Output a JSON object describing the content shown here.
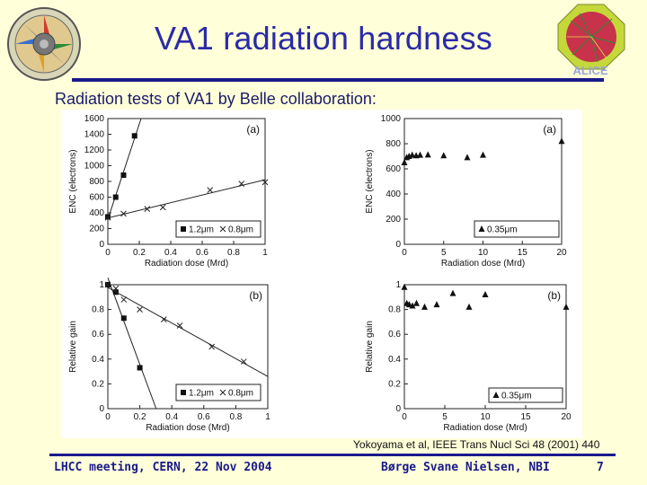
{
  "header": {
    "title": "VA1 radiation hardness",
    "subtitle": "Radiation tests of VA1 by Belle collaboration:"
  },
  "citation": "Yokoyama et al, IEEE Trans Nucl Sci 48 (2001) 440",
  "footer": {
    "left": "LHCC meeting, CERN, 22 Nov 2004",
    "center": "Børge Svane Nielsen, NBI",
    "page": "7"
  },
  "logos": {
    "right_logo_text": "ALICE"
  },
  "colors": {
    "title": "#2a2aa8",
    "rule": "#1a1a8c",
    "background": "#ffffd9"
  },
  "chart_data": [
    {
      "type": "scatter",
      "panel": "(a)",
      "xlabel": "Radiation dose (Mrd)",
      "ylabel": "ENC (electrons)",
      "xlim": [
        0,
        1
      ],
      "ylim": [
        0,
        1600
      ],
      "xticks": [
        "0",
        "0.2",
        "0.4",
        "0.6",
        "0.8",
        "1"
      ],
      "yticks": [
        "0",
        "200",
        "400",
        "600",
        "800",
        "1000",
        "1200",
        "1400",
        "1600"
      ],
      "legend": [
        "1.2μm",
        "0.8μm"
      ],
      "series": [
        {
          "name": "1.2μm",
          "marker": "square",
          "x": [
            0,
            0.05,
            0.1,
            0.17
          ],
          "y": [
            350,
            600,
            880,
            1380
          ]
        },
        {
          "name": "0.8μm",
          "marker": "cross",
          "x": [
            0,
            0.1,
            0.25,
            0.35,
            0.65,
            0.85,
            1.0
          ],
          "y": [
            340,
            390,
            450,
            470,
            690,
            770,
            790
          ]
        }
      ]
    },
    {
      "type": "scatter",
      "panel": "(a)",
      "xlabel": "Radiation dose (Mrd)",
      "ylabel": "ENC (electrons)",
      "xlim": [
        0,
        20
      ],
      "ylim": [
        0,
        1000
      ],
      "xticks": [
        "0",
        "5",
        "10",
        "15",
        "20"
      ],
      "yticks": [
        "0",
        "200",
        "400",
        "600",
        "800",
        "1000"
      ],
      "legend": [
        "0.35μm"
      ],
      "series": [
        {
          "name": "0.35μm",
          "marker": "triangle",
          "x": [
            0,
            0.3,
            0.6,
            1,
            1.5,
            2,
            3,
            5,
            8,
            10,
            20
          ],
          "y": [
            650,
            690,
            700,
            710,
            705,
            710,
            712,
            705,
            690,
            710,
            820
          ]
        }
      ]
    },
    {
      "type": "scatter",
      "panel": "(b)",
      "xlabel": "Radiation dose (Mrd)",
      "ylabel": "Relative gain",
      "xlim": [
        0,
        1
      ],
      "ylim": [
        0,
        1
      ],
      "xticks": [
        "0",
        "0.2",
        "0.4",
        "0.6",
        "0.8",
        "1"
      ],
      "yticks": [
        "0",
        "0.2",
        "0.4",
        "0.6",
        "0.8",
        "1"
      ],
      "legend": [
        "1.2μm",
        "0.8μm"
      ],
      "series": [
        {
          "name": "1.2μm",
          "marker": "square",
          "x": [
            0,
            0.05,
            0.1,
            0.2
          ],
          "y": [
            1.0,
            0.94,
            0.73,
            0.33
          ]
        },
        {
          "name": "0.8μm",
          "marker": "cross",
          "x": [
            0,
            0.05,
            0.1,
            0.2,
            0.35,
            0.45,
            0.65,
            0.85
          ],
          "y": [
            1.0,
            0.97,
            0.88,
            0.8,
            0.72,
            0.67,
            0.5,
            0.38
          ]
        }
      ]
    },
    {
      "type": "scatter",
      "panel": "(b)",
      "xlabel": "Radiation dose (Mrd)",
      "ylabel": "Relative gain",
      "xlim": [
        0,
        20
      ],
      "ylim": [
        0,
        1
      ],
      "xticks": [
        "0",
        "5",
        "10",
        "15",
        "20"
      ],
      "yticks": [
        "0",
        "0.2",
        "0.4",
        "0.6",
        "0.8",
        "1"
      ],
      "legend": [
        "0.35μm"
      ],
      "series": [
        {
          "name": "0.35μm",
          "marker": "triangle",
          "x": [
            0,
            0.3,
            0.6,
            1,
            1.5,
            2.5,
            4,
            6,
            8,
            10,
            20
          ],
          "y": [
            0.98,
            0.85,
            0.84,
            0.83,
            0.85,
            0.82,
            0.84,
            0.93,
            0.82,
            0.92,
            0.82
          ]
        }
      ]
    }
  ]
}
